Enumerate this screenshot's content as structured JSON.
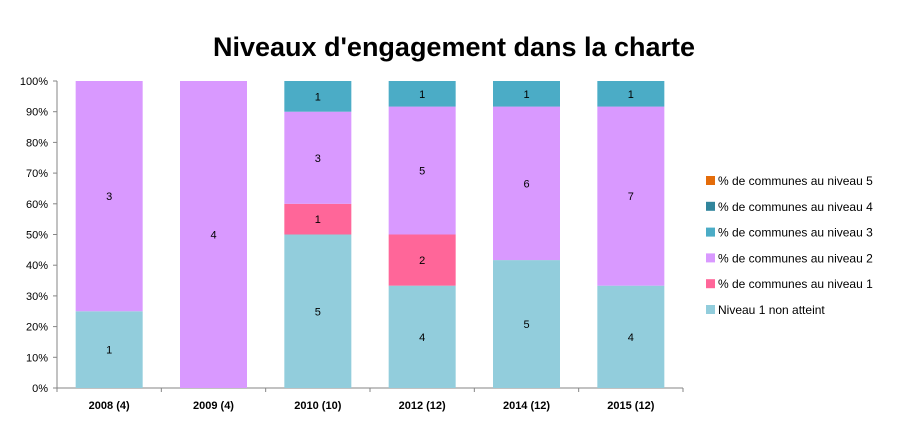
{
  "chart_data": {
    "type": "bar",
    "stacked": true,
    "percent_stacked": true,
    "title": "Niveaux d'engagement dans la charte",
    "categories": [
      "2008 (4)",
      "2009 (4)",
      "2010 (10)",
      "2012 (12)",
      "2014 (12)",
      "2015 (12)"
    ],
    "series": [
      {
        "name": "Niveau 1 non atteint",
        "color": "#92cddc",
        "values": [
          1,
          0,
          5,
          4,
          5,
          4
        ]
      },
      {
        "name": "% de communes au niveau 1",
        "color": "#ff6699",
        "values": [
          0,
          0,
          1,
          2,
          0,
          0
        ]
      },
      {
        "name": "% de communes au niveau 2",
        "color": "#d999ff",
        "values": [
          3,
          4,
          3,
          5,
          6,
          7
        ]
      },
      {
        "name": "% de communes au niveau 3",
        "color": "#4bacc6",
        "values": [
          0,
          0,
          1,
          1,
          1,
          1
        ]
      },
      {
        "name": "% de communes au niveau 4",
        "color": "#31859c",
        "values": [
          0,
          0,
          0,
          0,
          0,
          0
        ]
      },
      {
        "name": "% de communes au niveau 5",
        "color": "#e46c0a",
        "values": [
          0,
          0,
          0,
          0,
          0,
          0
        ]
      }
    ],
    "yticks": [
      "0%",
      "10%",
      "20%",
      "30%",
      "40%",
      "50%",
      "60%",
      "70%",
      "80%",
      "90%",
      "100%"
    ],
    "ylim": [
      0,
      100
    ],
    "grid": false,
    "legend_position": "right"
  }
}
